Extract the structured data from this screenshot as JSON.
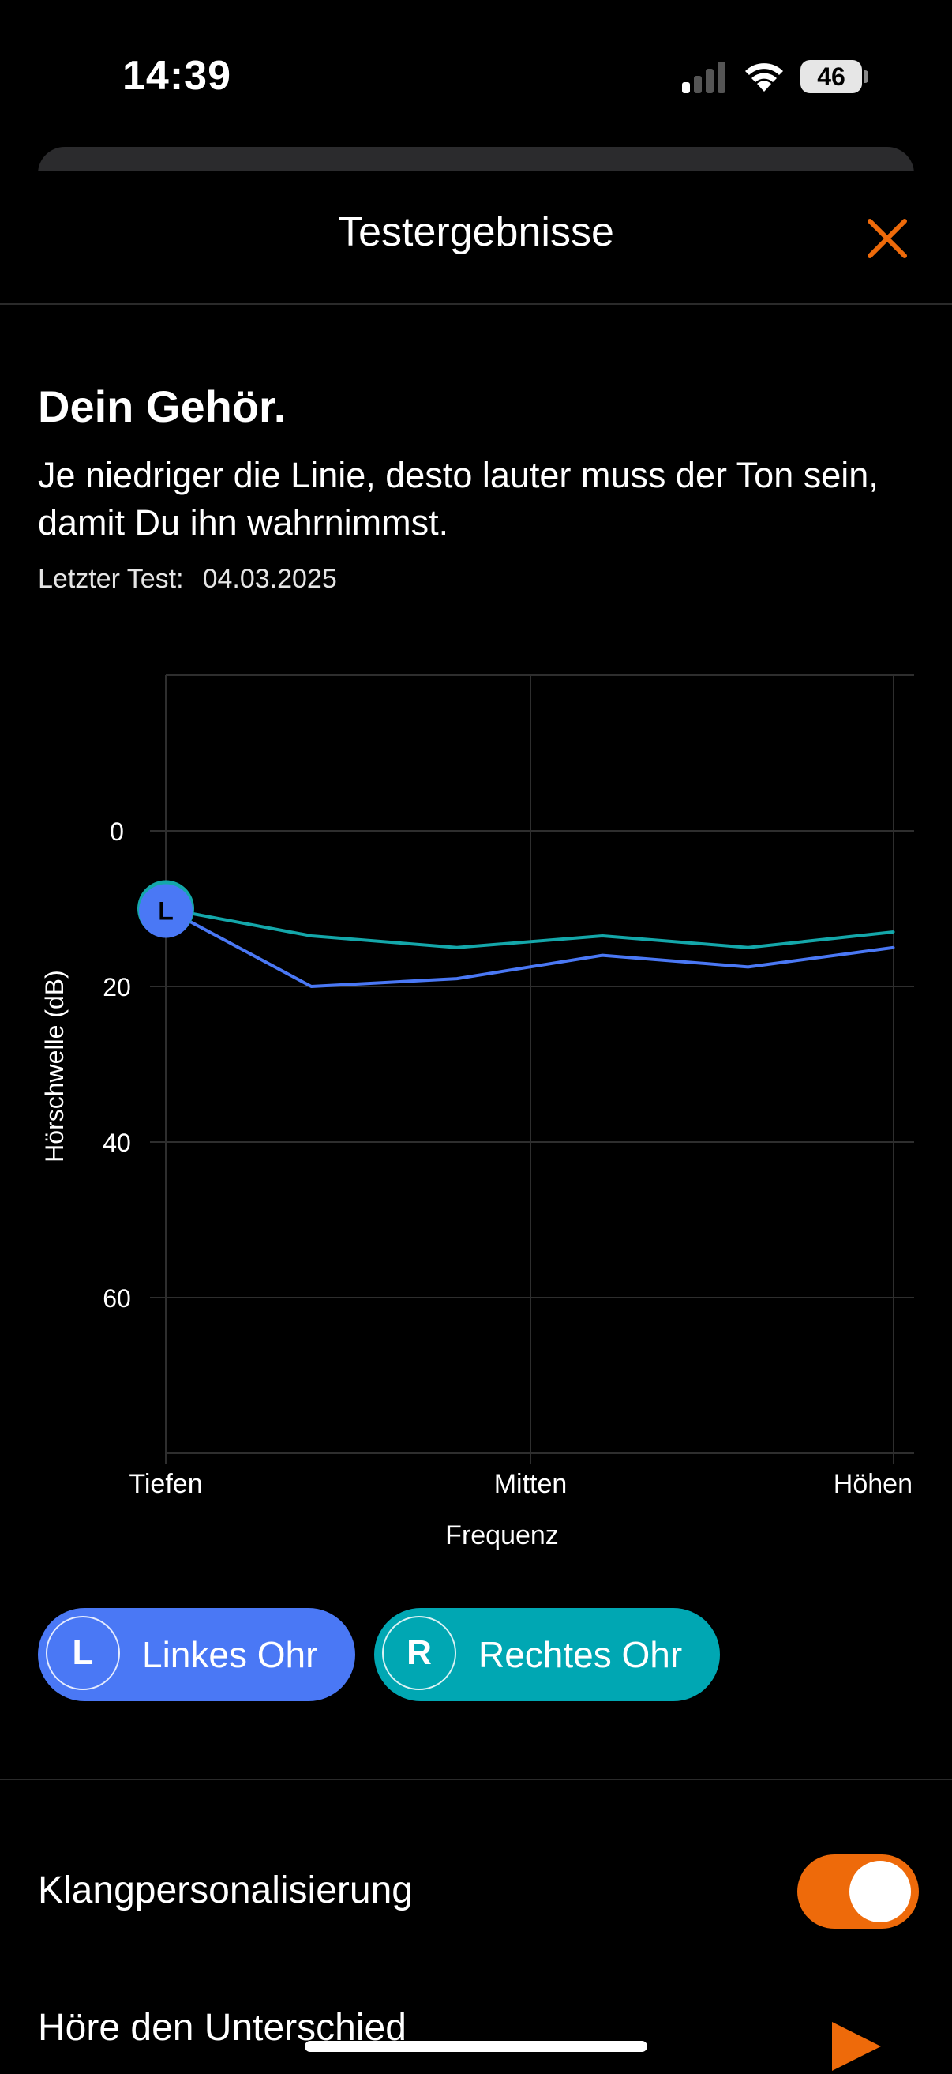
{
  "status_bar": {
    "time": "14:39",
    "battery": "46",
    "icons": [
      "signal-icon",
      "wifi-icon",
      "battery-icon"
    ]
  },
  "sheet": {
    "title": "Testergebnisse",
    "close_icon": "close-icon",
    "accent_color": "#ee6a0a"
  },
  "intro": {
    "heading": "Dein Gehör.",
    "description": "Je niedriger die Linie, desto lauter muss der Ton sein, damit Du ihn wahrnimmst.",
    "last_test_label": "Letzter Test:",
    "last_test_date": "04.03.2025"
  },
  "chart_data": {
    "type": "line",
    "xlabel": "Frequenz",
    "ylabel": "Hörschwelle (dB)",
    "x_tick_labels": [
      "Tiefen",
      "Mitten",
      "Höhen"
    ],
    "y_ticks": [
      0,
      20,
      40,
      60
    ],
    "ylim": [
      80,
      -20
    ],
    "y_inverted": true,
    "grid": true,
    "marker_label": "L",
    "series": [
      {
        "name": "Rechtes Ohr",
        "color": "#14a7aa",
        "values": [
          10,
          13.5,
          15,
          13.5,
          15,
          13
        ]
      },
      {
        "name": "Linkes Ohr",
        "color": "#4a78f5",
        "values": [
          10,
          20,
          19,
          16,
          17.5,
          15
        ]
      }
    ]
  },
  "legend": {
    "left": {
      "badge": "L",
      "label": "Linkes Ohr",
      "color": "#4a78f5"
    },
    "right": {
      "badge": "R",
      "label": "Rechtes Ohr",
      "color": "#00a7b3"
    }
  },
  "settings": {
    "personalization_label": "Klangpersonalisierung",
    "personalization_enabled": true,
    "hear_difference_label": "Höre den Unterschied",
    "play_icon": "play-icon"
  }
}
